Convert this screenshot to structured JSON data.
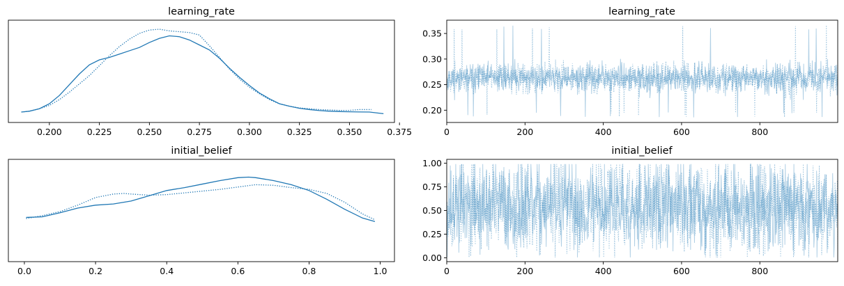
{
  "chart_data": [
    {
      "type": "line",
      "subtype": "kde",
      "title": "learning_rate",
      "xticks": [
        0.2,
        0.225,
        0.25,
        0.275,
        0.3,
        0.325,
        0.35,
        0.375
      ],
      "xtick_labels": [
        "0.200",
        "0.225",
        "0.250",
        "0.275",
        "0.300",
        "0.325",
        "0.350",
        "0.375"
      ],
      "xlim": [
        0.1795,
        0.3725
      ],
      "ylim": [
        0,
        1
      ],
      "ytick_labels": [],
      "grid": false,
      "color": "#1f77b4",
      "series": [
        {
          "linestyle": "solid",
          "x": [
            0.186,
            0.19,
            0.195,
            0.2,
            0.205,
            0.21,
            0.215,
            0.22,
            0.225,
            0.23,
            0.235,
            0.24,
            0.245,
            0.25,
            0.255,
            0.26,
            0.265,
            0.27,
            0.275,
            0.28,
            0.285,
            0.29,
            0.295,
            0.3,
            0.305,
            0.31,
            0.315,
            0.32,
            0.325,
            0.33,
            0.335,
            0.34,
            0.345,
            0.35,
            0.355,
            0.36,
            0.367
          ],
          "y": [
            0.0,
            0.01,
            0.04,
            0.1,
            0.2,
            0.33,
            0.46,
            0.57,
            0.63,
            0.66,
            0.7,
            0.74,
            0.78,
            0.84,
            0.89,
            0.92,
            0.91,
            0.87,
            0.81,
            0.75,
            0.65,
            0.53,
            0.42,
            0.32,
            0.23,
            0.16,
            0.1,
            0.07,
            0.045,
            0.03,
            0.018,
            0.01,
            0.006,
            0.003,
            0.001,
            0.0,
            -0.02
          ]
        },
        {
          "linestyle": "dotted",
          "x": [
            0.186,
            0.19,
            0.195,
            0.2,
            0.205,
            0.21,
            0.215,
            0.22,
            0.225,
            0.23,
            0.235,
            0.24,
            0.245,
            0.25,
            0.255,
            0.26,
            0.265,
            0.27,
            0.275,
            0.28,
            0.285,
            0.29,
            0.295,
            0.3,
            0.305,
            0.31,
            0.315,
            0.32,
            0.325,
            0.33,
            0.335,
            0.34,
            0.345,
            0.35,
            0.355,
            0.361
          ],
          "y": [
            0.0,
            0.01,
            0.04,
            0.08,
            0.15,
            0.24,
            0.34,
            0.44,
            0.56,
            0.68,
            0.79,
            0.88,
            0.95,
            0.99,
            1.0,
            0.98,
            0.97,
            0.96,
            0.93,
            0.8,
            0.66,
            0.52,
            0.4,
            0.3,
            0.22,
            0.15,
            0.1,
            0.07,
            0.05,
            0.04,
            0.03,
            0.025,
            0.02,
            0.02,
            0.03,
            0.03
          ]
        }
      ]
    },
    {
      "type": "line",
      "subtype": "trace",
      "title": "learning_rate",
      "xticks": [
        0,
        200,
        400,
        600,
        800
      ],
      "xtick_labels": [
        "0",
        "200",
        "400",
        "600",
        "800"
      ],
      "yticks": [
        0.2,
        0.25,
        0.3,
        0.35
      ],
      "ytick_labels": [
        "0.20",
        "0.25",
        "0.30",
        "0.35"
      ],
      "xlim": [
        0,
        999
      ],
      "ylim": [
        0.176,
        0.376
      ],
      "grid": false,
      "color": "#1f77b4",
      "n_draws": 1000,
      "draws_summary": {
        "mean": 0.263,
        "sd": 0.028,
        "min": 0.186,
        "max": 0.367
      },
      "series": [
        {
          "chain": 0,
          "linestyle": "solid",
          "alpha": 0.35,
          "seed": 11
        },
        {
          "chain": 1,
          "linestyle": "dotted",
          "alpha": 0.45,
          "seed": 23
        }
      ]
    },
    {
      "type": "line",
      "subtype": "kde",
      "title": "initial_belief",
      "xticks": [
        0.0,
        0.2,
        0.4,
        0.6,
        0.8,
        1.0
      ],
      "xtick_labels": [
        "0.0",
        "0.2",
        "0.4",
        "0.6",
        "0.8",
        "1.0"
      ],
      "xlim": [
        -0.045,
        1.04
      ],
      "ylim": [
        0,
        1
      ],
      "ytick_labels": [],
      "grid": false,
      "color": "#1f77b4",
      "series": [
        {
          "linestyle": "solid",
          "x": [
            0.005,
            0.05,
            0.1,
            0.15,
            0.2,
            0.25,
            0.3,
            0.35,
            0.4,
            0.45,
            0.5,
            0.55,
            0.6,
            0.63,
            0.65,
            0.7,
            0.75,
            0.8,
            0.85,
            0.9,
            0.95,
            0.985
          ],
          "y": [
            0.09,
            0.1,
            0.17,
            0.25,
            0.3,
            0.32,
            0.37,
            0.46,
            0.55,
            0.6,
            0.66,
            0.72,
            0.77,
            0.78,
            0.77,
            0.72,
            0.65,
            0.55,
            0.4,
            0.23,
            0.08,
            0.02
          ]
        },
        {
          "linestyle": "dotted",
          "x": [
            0.005,
            0.05,
            0.1,
            0.15,
            0.2,
            0.25,
            0.28,
            0.3,
            0.35,
            0.4,
            0.45,
            0.5,
            0.55,
            0.6,
            0.65,
            0.7,
            0.75,
            0.8,
            0.85,
            0.9,
            0.95,
            0.985
          ],
          "y": [
            0.07,
            0.12,
            0.19,
            0.3,
            0.43,
            0.49,
            0.5,
            0.49,
            0.47,
            0.48,
            0.51,
            0.54,
            0.57,
            0.61,
            0.65,
            0.64,
            0.6,
            0.57,
            0.5,
            0.35,
            0.15,
            0.05
          ]
        }
      ]
    },
    {
      "type": "line",
      "subtype": "trace",
      "title": "initial_belief",
      "xticks": [
        0,
        200,
        400,
        600,
        800
      ],
      "xtick_labels": [
        "0",
        "200",
        "400",
        "600",
        "800"
      ],
      "yticks": [
        0.0,
        0.25,
        0.5,
        0.75,
        1.0
      ],
      "ytick_labels": [
        "0.00",
        "0.25",
        "0.50",
        "0.75",
        "1.00"
      ],
      "xlim": [
        0,
        999
      ],
      "ylim": [
        -0.04,
        1.04
      ],
      "grid": false,
      "color": "#1f77b4",
      "n_draws": 1000,
      "draws_summary": {
        "mean": 0.55,
        "sd": 0.24,
        "min": 0.005,
        "max": 0.99
      },
      "series": [
        {
          "chain": 0,
          "linestyle": "solid",
          "alpha": 0.35,
          "seed": 37
        },
        {
          "chain": 1,
          "linestyle": "dotted",
          "alpha": 0.45,
          "seed": 53
        }
      ]
    }
  ]
}
